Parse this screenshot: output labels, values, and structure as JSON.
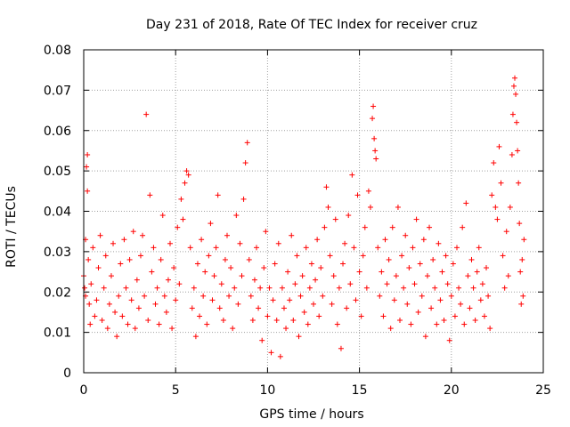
{
  "chart_data": {
    "type": "scatter",
    "title": "Day 231 of 2018, Rate Of TEC Index for receiver cruz",
    "xlabel": "GPS time / hours",
    "ylabel": "ROTI / TECUs",
    "xlim": [
      0,
      25
    ],
    "ylim": [
      0,
      0.08
    ],
    "xticks": [
      0,
      5,
      10,
      15,
      20,
      25
    ],
    "yticks": [
      0,
      0.01,
      0.02,
      0.03,
      0.04,
      0.05,
      0.06,
      0.07,
      0.08
    ],
    "xtick_labels": [
      "0",
      "5",
      "10",
      "15",
      "20",
      "25"
    ],
    "ytick_labels": [
      "0",
      "0.01",
      "0.02",
      "0.03",
      "0.04",
      "0.05",
      "0.06",
      "0.07",
      "0.08"
    ],
    "grid": true,
    "marker": "+",
    "marker_color": "#ff0000",
    "series": [
      {
        "name": "ROTI",
        "points": [
          [
            0.0,
            0.024
          ],
          [
            0.05,
            0.021
          ],
          [
            0.1,
            0.019
          ],
          [
            0.1,
            0.033
          ],
          [
            0.15,
            0.051
          ],
          [
            0.2,
            0.054
          ],
          [
            0.2,
            0.045
          ],
          [
            0.25,
            0.028
          ],
          [
            0.3,
            0.017
          ],
          [
            0.35,
            0.012
          ],
          [
            0.4,
            0.022
          ],
          [
            0.5,
            0.031
          ],
          [
            0.6,
            0.014
          ],
          [
            0.7,
            0.018
          ],
          [
            0.8,
            0.026
          ],
          [
            0.9,
            0.034
          ],
          [
            1.0,
            0.013
          ],
          [
            1.1,
            0.021
          ],
          [
            1.2,
            0.029
          ],
          [
            1.3,
            0.011
          ],
          [
            1.4,
            0.017
          ],
          [
            1.5,
            0.024
          ],
          [
            1.6,
            0.032
          ],
          [
            1.7,
            0.015
          ],
          [
            1.8,
            0.009
          ],
          [
            1.9,
            0.019
          ],
          [
            2.0,
            0.027
          ],
          [
            2.1,
            0.014
          ],
          [
            2.2,
            0.033
          ],
          [
            2.3,
            0.021
          ],
          [
            2.4,
            0.012
          ],
          [
            2.5,
            0.028
          ],
          [
            2.6,
            0.018
          ],
          [
            2.7,
            0.035
          ],
          [
            2.8,
            0.011
          ],
          [
            2.9,
            0.023
          ],
          [
            3.0,
            0.016
          ],
          [
            3.1,
            0.029
          ],
          [
            3.2,
            0.034
          ],
          [
            3.3,
            0.019
          ],
          [
            3.4,
            0.064
          ],
          [
            3.5,
            0.013
          ],
          [
            3.6,
            0.044
          ],
          [
            3.7,
            0.025
          ],
          [
            3.8,
            0.031
          ],
          [
            3.9,
            0.017
          ],
          [
            4.0,
            0.021
          ],
          [
            4.1,
            0.012
          ],
          [
            4.2,
            0.028
          ],
          [
            4.3,
            0.039
          ],
          [
            4.4,
            0.019
          ],
          [
            4.5,
            0.015
          ],
          [
            4.6,
            0.023
          ],
          [
            4.7,
            0.032
          ],
          [
            4.8,
            0.011
          ],
          [
            4.9,
            0.026
          ],
          [
            5.0,
            0.018
          ],
          [
            5.1,
            0.036
          ],
          [
            5.2,
            0.022
          ],
          [
            5.3,
            0.043
          ],
          [
            5.4,
            0.038
          ],
          [
            5.5,
            0.047
          ],
          [
            5.6,
            0.05
          ],
          [
            5.7,
            0.049
          ],
          [
            5.8,
            0.031
          ],
          [
            5.9,
            0.016
          ],
          [
            6.0,
            0.021
          ],
          [
            6.1,
            0.009
          ],
          [
            6.2,
            0.027
          ],
          [
            6.3,
            0.014
          ],
          [
            6.4,
            0.033
          ],
          [
            6.5,
            0.019
          ],
          [
            6.6,
            0.025
          ],
          [
            6.7,
            0.012
          ],
          [
            6.8,
            0.029
          ],
          [
            6.9,
            0.037
          ],
          [
            7.0,
            0.018
          ],
          [
            7.1,
            0.024
          ],
          [
            7.2,
            0.031
          ],
          [
            7.3,
            0.044
          ],
          [
            7.4,
            0.016
          ],
          [
            7.5,
            0.022
          ],
          [
            7.6,
            0.013
          ],
          [
            7.7,
            0.028
          ],
          [
            7.8,
            0.034
          ],
          [
            7.9,
            0.019
          ],
          [
            8.0,
            0.026
          ],
          [
            8.1,
            0.011
          ],
          [
            8.2,
            0.021
          ],
          [
            8.3,
            0.039
          ],
          [
            8.4,
            0.017
          ],
          [
            8.5,
            0.032
          ],
          [
            8.6,
            0.024
          ],
          [
            8.7,
            0.043
          ],
          [
            8.8,
            0.052
          ],
          [
            8.9,
            0.057
          ],
          [
            9.0,
            0.028
          ],
          [
            9.1,
            0.019
          ],
          [
            9.2,
            0.013
          ],
          [
            9.3,
            0.023
          ],
          [
            9.4,
            0.031
          ],
          [
            9.5,
            0.016
          ],
          [
            9.6,
            0.021
          ],
          [
            9.7,
            0.008
          ],
          [
            9.8,
            0.026
          ],
          [
            9.9,
            0.035
          ],
          [
            10.0,
            0.014
          ],
          [
            10.1,
            0.021
          ],
          [
            10.2,
            0.005
          ],
          [
            10.3,
            0.018
          ],
          [
            10.4,
            0.027
          ],
          [
            10.5,
            0.013
          ],
          [
            10.6,
            0.032
          ],
          [
            10.7,
            0.004
          ],
          [
            10.8,
            0.021
          ],
          [
            10.9,
            0.016
          ],
          [
            11.0,
            0.011
          ],
          [
            11.1,
            0.025
          ],
          [
            11.2,
            0.018
          ],
          [
            11.3,
            0.034
          ],
          [
            11.4,
            0.013
          ],
          [
            11.5,
            0.022
          ],
          [
            11.6,
            0.029
          ],
          [
            11.7,
            0.009
          ],
          [
            11.8,
            0.019
          ],
          [
            11.9,
            0.024
          ],
          [
            12.0,
            0.015
          ],
          [
            12.1,
            0.031
          ],
          [
            12.2,
            0.012
          ],
          [
            12.3,
            0.021
          ],
          [
            12.4,
            0.027
          ],
          [
            12.5,
            0.017
          ],
          [
            12.6,
            0.023
          ],
          [
            12.7,
            0.033
          ],
          [
            12.8,
            0.014
          ],
          [
            12.9,
            0.026
          ],
          [
            13.0,
            0.019
          ],
          [
            13.1,
            0.036
          ],
          [
            13.2,
            0.046
          ],
          [
            13.3,
            0.041
          ],
          [
            13.4,
            0.029
          ],
          [
            13.5,
            0.017
          ],
          [
            13.6,
            0.024
          ],
          [
            13.7,
            0.038
          ],
          [
            13.8,
            0.012
          ],
          [
            13.9,
            0.021
          ],
          [
            14.0,
            0.006
          ],
          [
            14.1,
            0.027
          ],
          [
            14.2,
            0.032
          ],
          [
            14.3,
            0.016
          ],
          [
            14.4,
            0.039
          ],
          [
            14.5,
            0.022
          ],
          [
            14.6,
            0.049
          ],
          [
            14.7,
            0.031
          ],
          [
            14.8,
            0.018
          ],
          [
            14.9,
            0.044
          ],
          [
            15.0,
            0.025
          ],
          [
            15.1,
            0.014
          ],
          [
            15.2,
            0.029
          ],
          [
            15.3,
            0.036
          ],
          [
            15.4,
            0.021
          ],
          [
            15.5,
            0.045
          ],
          [
            15.6,
            0.041
          ],
          [
            15.7,
            0.063
          ],
          [
            15.75,
            0.066
          ],
          [
            15.8,
            0.058
          ],
          [
            15.85,
            0.055
          ],
          [
            15.9,
            0.053
          ],
          [
            16.0,
            0.031
          ],
          [
            16.1,
            0.019
          ],
          [
            16.2,
            0.025
          ],
          [
            16.3,
            0.014
          ],
          [
            16.4,
            0.033
          ],
          [
            16.5,
            0.022
          ],
          [
            16.6,
            0.028
          ],
          [
            16.7,
            0.011
          ],
          [
            16.8,
            0.036
          ],
          [
            16.9,
            0.018
          ],
          [
            17.0,
            0.024
          ],
          [
            17.1,
            0.041
          ],
          [
            17.2,
            0.013
          ],
          [
            17.3,
            0.029
          ],
          [
            17.4,
            0.021
          ],
          [
            17.5,
            0.034
          ],
          [
            17.6,
            0.017
          ],
          [
            17.7,
            0.026
          ],
          [
            17.8,
            0.012
          ],
          [
            17.9,
            0.031
          ],
          [
            18.0,
            0.022
          ],
          [
            18.1,
            0.038
          ],
          [
            18.2,
            0.015
          ],
          [
            18.3,
            0.027
          ],
          [
            18.4,
            0.019
          ],
          [
            18.5,
            0.033
          ],
          [
            18.6,
            0.009
          ],
          [
            18.7,
            0.024
          ],
          [
            18.8,
            0.036
          ],
          [
            18.9,
            0.016
          ],
          [
            19.0,
            0.028
          ],
          [
            19.1,
            0.021
          ],
          [
            19.2,
            0.012
          ],
          [
            19.3,
            0.032
          ],
          [
            19.4,
            0.018
          ],
          [
            19.5,
            0.025
          ],
          [
            19.6,
            0.013
          ],
          [
            19.7,
            0.029
          ],
          [
            19.8,
            0.022
          ],
          [
            19.9,
            0.008
          ],
          [
            20.0,
            0.019
          ],
          [
            20.1,
            0.027
          ],
          [
            20.2,
            0.014
          ],
          [
            20.3,
            0.031
          ],
          [
            20.4,
            0.021
          ],
          [
            20.5,
            0.017
          ],
          [
            20.6,
            0.036
          ],
          [
            20.7,
            0.012
          ],
          [
            20.8,
            0.042
          ],
          [
            20.9,
            0.024
          ],
          [
            21.0,
            0.016
          ],
          [
            21.1,
            0.028
          ],
          [
            21.2,
            0.021
          ],
          [
            21.3,
            0.013
          ],
          [
            21.4,
            0.025
          ],
          [
            21.5,
            0.031
          ],
          [
            21.6,
            0.018
          ],
          [
            21.7,
            0.022
          ],
          [
            21.8,
            0.014
          ],
          [
            21.9,
            0.026
          ],
          [
            22.0,
            0.019
          ],
          [
            22.1,
            0.011
          ],
          [
            22.2,
            0.044
          ],
          [
            22.3,
            0.052
          ],
          [
            22.4,
            0.041
          ],
          [
            22.5,
            0.038
          ],
          [
            22.6,
            0.056
          ],
          [
            22.7,
            0.047
          ],
          [
            22.8,
            0.029
          ],
          [
            22.9,
            0.021
          ],
          [
            23.0,
            0.035
          ],
          [
            23.1,
            0.024
          ],
          [
            23.2,
            0.041
          ],
          [
            23.3,
            0.054
          ],
          [
            23.35,
            0.064
          ],
          [
            23.4,
            0.071
          ],
          [
            23.45,
            0.073
          ],
          [
            23.5,
            0.069
          ],
          [
            23.55,
            0.062
          ],
          [
            23.6,
            0.055
          ],
          [
            23.65,
            0.047
          ],
          [
            23.7,
            0.037
          ],
          [
            23.75,
            0.025
          ],
          [
            23.8,
            0.017
          ],
          [
            23.85,
            0.028
          ],
          [
            23.9,
            0.019
          ],
          [
            23.95,
            0.033
          ]
        ]
      }
    ]
  }
}
